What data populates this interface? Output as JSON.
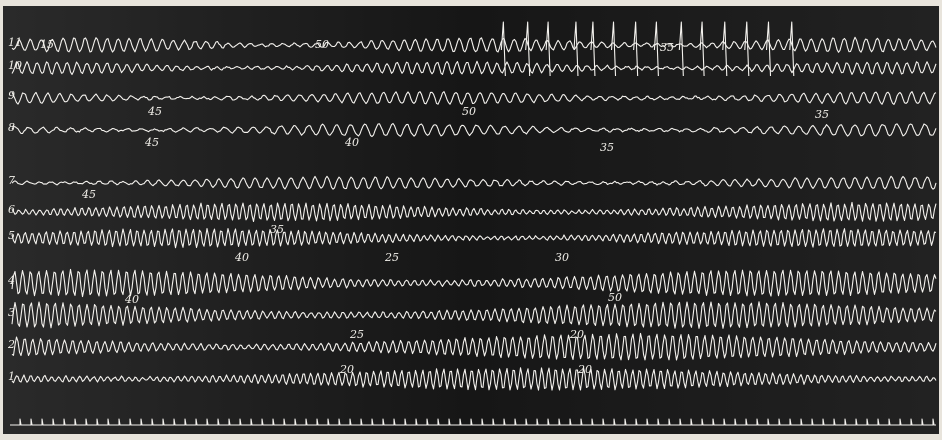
{
  "figure": {
    "row_labels": [
      "11",
      "10",
      "9",
      "8",
      "7",
      "6",
      "5",
      "4",
      "3",
      "2",
      "1"
    ],
    "annotations": [
      "15",
      "50",
      "35",
      "45",
      "50",
      "35",
      "45",
      "40",
      "35",
      "45",
      "35",
      "40",
      "25",
      "30",
      "40",
      "50",
      "25",
      "20",
      "20",
      "20"
    ]
  }
}
